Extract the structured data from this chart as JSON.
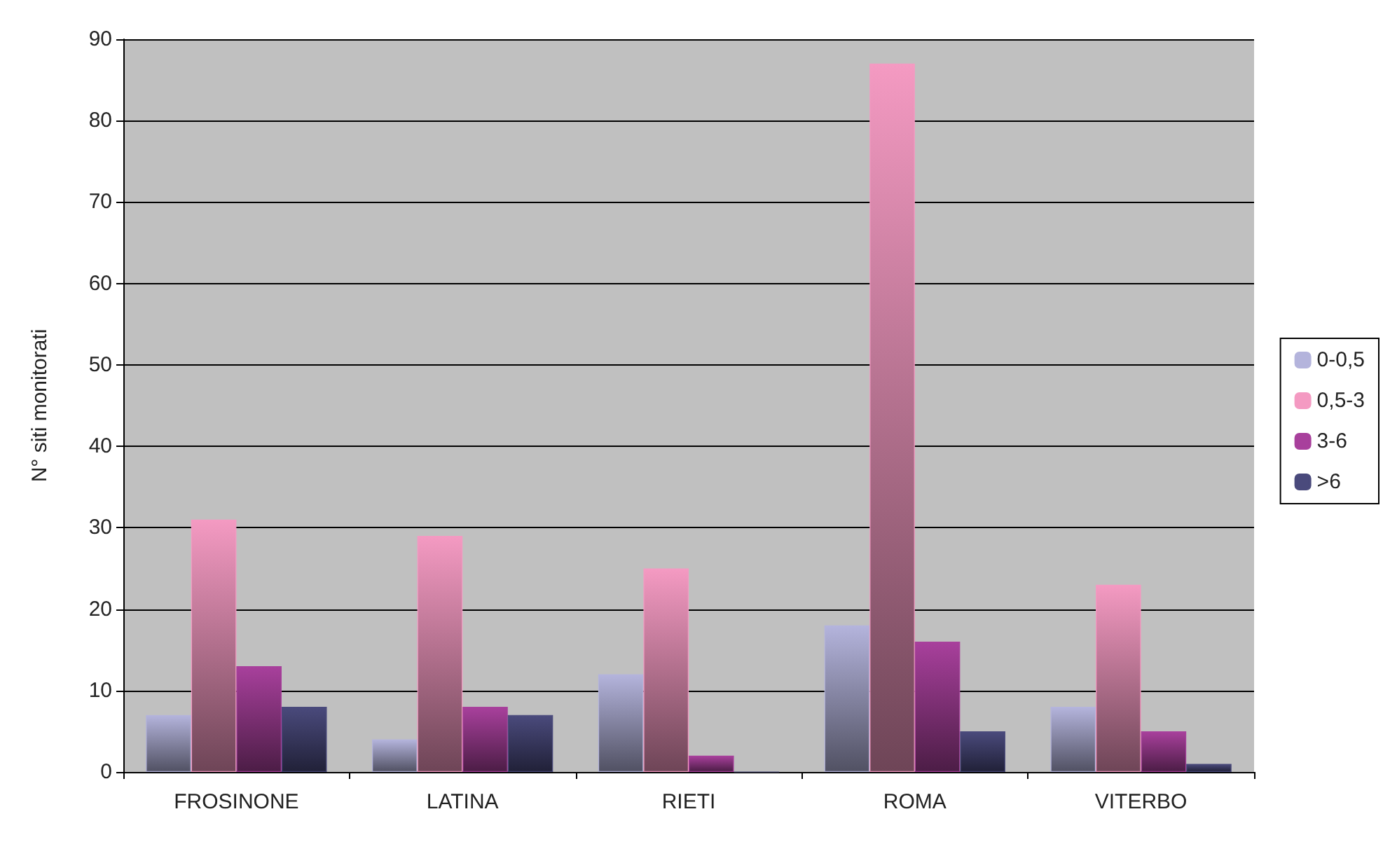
{
  "chart_data": {
    "type": "bar",
    "ylabel": "N° siti monitorati",
    "categories": [
      "FROSINONE",
      "LATINA",
      "RIETI",
      "ROMA",
      "VITERBO"
    ],
    "series": [
      {
        "name": "0-0,5",
        "color": "#b4b4dc",
        "values": [
          7,
          4,
          12,
          18,
          8
        ]
      },
      {
        "name": "0,5-3",
        "color": "#f49ac2",
        "values": [
          31,
          29,
          25,
          87,
          23
        ]
      },
      {
        "name": "3-6",
        "color": "#a8409c",
        "values": [
          13,
          8,
          2,
          16,
          5
        ]
      },
      {
        "name": ">6",
        "color": "#4a4a7c",
        "values": [
          8,
          7,
          0,
          5,
          1
        ]
      }
    ],
    "ylim": [
      0,
      90
    ],
    "yticks": [
      0,
      10,
      20,
      30,
      40,
      50,
      60,
      70,
      80,
      90
    ],
    "grid": "y",
    "legend": "right"
  }
}
